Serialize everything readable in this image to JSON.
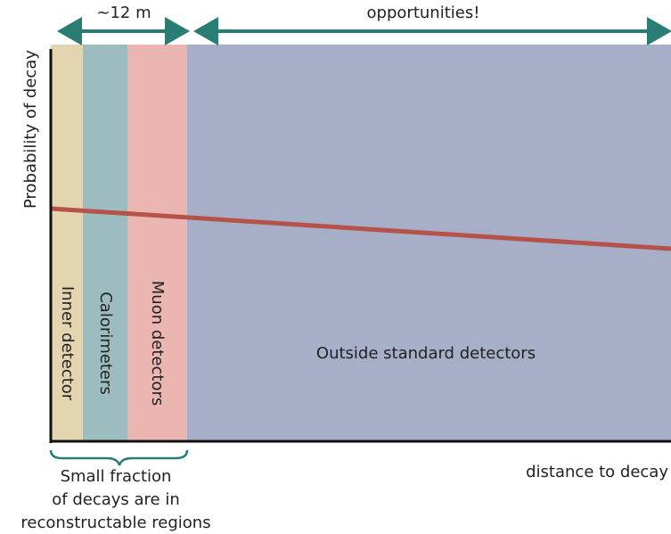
{
  "header": {
    "left_span": "~12 m",
    "right_span": "opportunities!"
  },
  "axes": {
    "y_label": "Probability of decay",
    "x_label": "distance to decay"
  },
  "regions": [
    {
      "label": "Inner detector"
    },
    {
      "label": "Calorimeters"
    },
    {
      "label": "Muon detectors"
    },
    {
      "label": "Outside standard detectors"
    }
  ],
  "note": [
    "Small fraction",
    "of decays are in",
    "reconstructable regions"
  ]
}
